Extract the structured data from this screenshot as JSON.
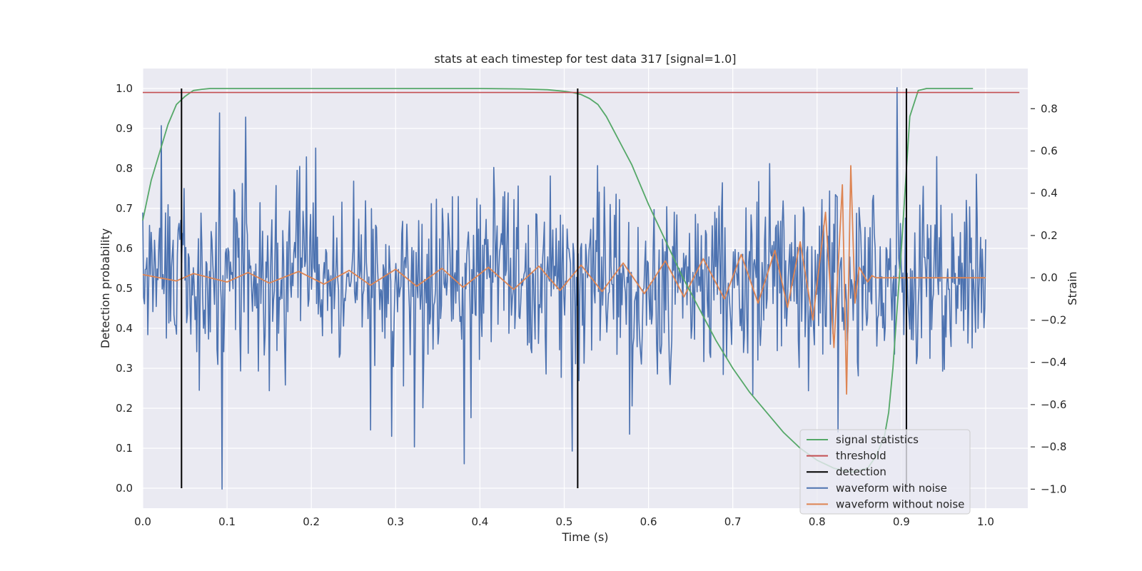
{
  "chart_data": {
    "type": "line",
    "title": "stats at each timestep for test data 317 [signal=1.0]",
    "xlabel": "Time (s)",
    "ylabel_left": "Detection probability",
    "ylabel_right": "Strain",
    "xlim": [
      0.0,
      1.05
    ],
    "ylim_left": [
      -0.05,
      1.05
    ],
    "ylim_right": [
      -1.09,
      0.99
    ],
    "x_ticks": [
      "0.0",
      "0.1",
      "0.2",
      "0.3",
      "0.4",
      "0.5",
      "0.6",
      "0.7",
      "0.8",
      "0.9",
      "1.0"
    ],
    "y_ticks_left": [
      "0.0",
      "0.1",
      "0.2",
      "0.3",
      "0.4",
      "0.5",
      "0.6",
      "0.7",
      "0.8",
      "0.9",
      "1.0"
    ],
    "y_ticks_right": [
      "−1.0",
      "−0.8",
      "−0.6",
      "−0.4",
      "−0.2",
      "0.0",
      "0.2",
      "0.4",
      "0.6",
      "0.8"
    ],
    "grid": true,
    "legend_position": "lower-right",
    "legend": [
      {
        "label": "signal statistics",
        "color": "#55a868"
      },
      {
        "label": "threshold",
        "color": "#c44e52"
      },
      {
        "label": "detection",
        "color": "#000000"
      },
      {
        "label": "waveform with noise",
        "color": "#4c72b0"
      },
      {
        "label": "waveform without noise",
        "color": "#dd8452"
      }
    ],
    "series": [
      {
        "name": "signal statistics",
        "axis": "left",
        "color": "#55a868",
        "x": [
          0.0,
          0.01,
          0.02,
          0.03,
          0.04,
          0.05,
          0.06,
          0.07,
          0.08,
          0.1,
          0.2,
          0.3,
          0.4,
          0.45,
          0.48,
          0.5,
          0.51,
          0.52,
          0.53,
          0.54,
          0.55,
          0.56,
          0.57,
          0.58,
          0.6,
          0.62,
          0.64,
          0.66,
          0.68,
          0.7,
          0.72,
          0.74,
          0.76,
          0.78,
          0.8,
          0.82,
          0.84,
          0.86,
          0.87,
          0.88,
          0.885,
          0.89,
          0.9,
          0.91,
          0.92,
          0.93,
          0.95,
          0.97,
          0.985
        ],
        "y": [
          0.67,
          0.77,
          0.84,
          0.91,
          0.96,
          0.98,
          0.995,
          0.998,
          1.0,
          1.0,
          1.0,
          1.0,
          1.0,
          0.999,
          0.997,
          0.993,
          0.99,
          0.985,
          0.975,
          0.96,
          0.93,
          0.89,
          0.85,
          0.81,
          0.71,
          0.62,
          0.53,
          0.45,
          0.37,
          0.3,
          0.24,
          0.19,
          0.14,
          0.1,
          0.07,
          0.05,
          0.04,
          0.05,
          0.08,
          0.13,
          0.19,
          0.3,
          0.6,
          0.93,
          0.995,
          1.0,
          1.0,
          1.0,
          1.0
        ]
      },
      {
        "name": "threshold",
        "axis": "left",
        "color": "#c44e52",
        "x": [
          0.0,
          1.04
        ],
        "y": [
          0.99,
          0.99
        ]
      },
      {
        "name": "detection",
        "axis": "left",
        "color": "#000000",
        "type": "vlines",
        "x": [
          0.046,
          0.516,
          0.906
        ],
        "y_range": [
          0.0,
          1.0
        ]
      },
      {
        "name": "waveform with noise",
        "axis": "right",
        "color": "#4c72b0",
        "x_range": [
          0.0,
          1.0
        ],
        "points": 1000,
        "noise_sigma": 0.22,
        "y_notable": [
          {
            "x": 0.022,
            "y": 0.72
          },
          {
            "x": 0.094,
            "y": -1.0
          },
          {
            "x": 0.091,
            "y": 0.78
          },
          {
            "x": 0.122,
            "y": 0.76
          },
          {
            "x": 0.27,
            "y": -0.72
          },
          {
            "x": 0.295,
            "y": -0.75
          },
          {
            "x": 0.322,
            "y": -0.8
          },
          {
            "x": 0.381,
            "y": -0.88
          },
          {
            "x": 0.51,
            "y": -0.82
          },
          {
            "x": 0.578,
            "y": -0.74
          },
          {
            "x": 0.825,
            "y": -0.73
          },
          {
            "x": 0.895,
            "y": 0.9
          }
        ]
      },
      {
        "name": "waveform without noise",
        "axis": "right",
        "color": "#dd8452",
        "x": [
          0.0,
          0.04,
          0.06,
          0.1,
          0.125,
          0.15,
          0.185,
          0.215,
          0.245,
          0.27,
          0.3,
          0.325,
          0.355,
          0.38,
          0.41,
          0.44,
          0.47,
          0.495,
          0.52,
          0.545,
          0.57,
          0.595,
          0.62,
          0.642,
          0.665,
          0.69,
          0.71,
          0.73,
          0.75,
          0.765,
          0.78,
          0.795,
          0.81,
          0.82,
          0.83,
          0.835,
          0.84,
          0.845,
          0.85,
          0.86,
          0.865,
          0.87,
          0.88,
          1.0
        ],
        "y": [
          0.015,
          -0.015,
          0.02,
          -0.02,
          0.025,
          -0.025,
          0.03,
          -0.03,
          0.035,
          -0.035,
          0.04,
          -0.04,
          0.045,
          -0.045,
          0.05,
          -0.055,
          0.055,
          -0.06,
          0.06,
          -0.065,
          0.07,
          -0.075,
          0.08,
          -0.09,
          0.09,
          -0.1,
          0.11,
          -0.12,
          0.13,
          -0.14,
          0.17,
          -0.2,
          0.31,
          -0.33,
          0.44,
          -0.55,
          0.53,
          -0.12,
          0.05,
          -0.02,
          0.01,
          0.0,
          0.0,
          0.0
        ]
      }
    ]
  }
}
